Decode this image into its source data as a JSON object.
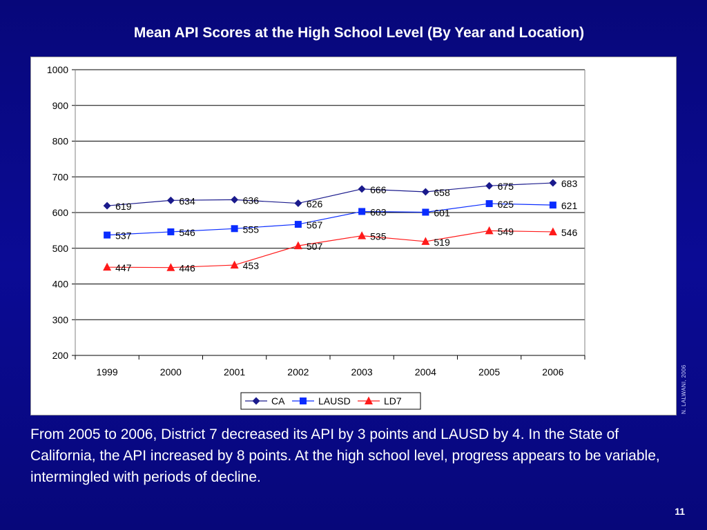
{
  "slide": {
    "title": "Mean API Scores at the High School Level (By Year and Location)",
    "caption": "From 2005 to 2006, District 7 decreased its API by 3 points and LAUSD by 4.  In the State of California, the API increased by 8 points.  At the high school level, progress appears to be variable, intermingled with periods of decline.",
    "page_number": "11",
    "watermark": "N. LALWANI, 2006"
  },
  "chart_data": {
    "type": "line",
    "title": "Mean API Scores at the High School Level (By Year and Location)",
    "xlabel": "",
    "ylabel": "",
    "categories": [
      "1999",
      "2000",
      "2001",
      "2002",
      "2003",
      "2004",
      "2005",
      "2006"
    ],
    "ylim": [
      200,
      1000
    ],
    "yticks": [
      200,
      300,
      400,
      500,
      600,
      700,
      800,
      900,
      1000
    ],
    "grid": true,
    "legend_position": "bottom",
    "series": [
      {
        "name": "CA",
        "marker": "diamond",
        "color": "#1a1a8c",
        "values": [
          619,
          634,
          636,
          626,
          666,
          658,
          675,
          683
        ]
      },
      {
        "name": "LAUSD",
        "marker": "square",
        "color": "#0a2cff",
        "values": [
          537,
          546,
          555,
          567,
          603,
          601,
          625,
          621
        ]
      },
      {
        "name": "LD7",
        "marker": "triangle",
        "color": "#ff1a1a",
        "values": [
          447,
          446,
          453,
          507,
          535,
          519,
          549,
          546
        ]
      }
    ]
  }
}
